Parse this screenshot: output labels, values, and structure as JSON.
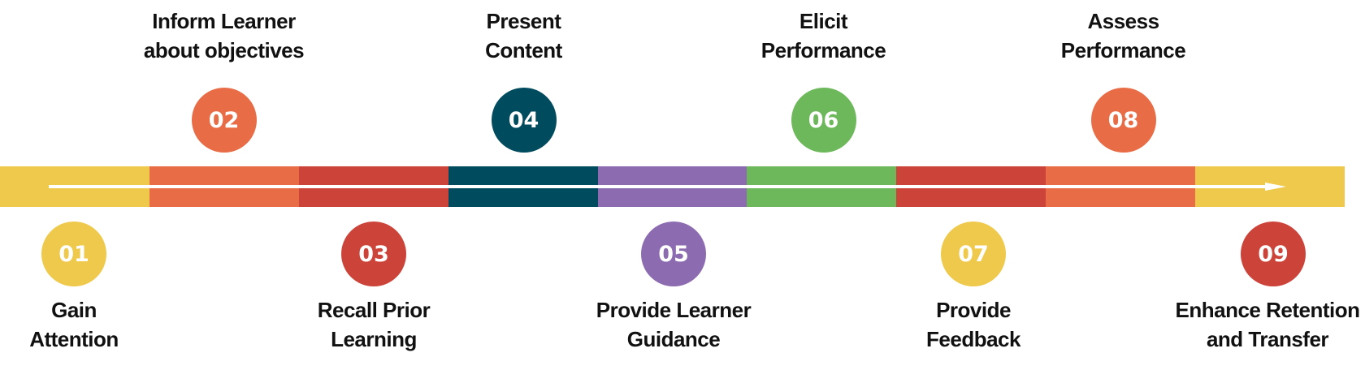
{
  "colors": {
    "yellow": "#EFC94C",
    "orange": "#E86D47",
    "red": "#CC433A",
    "teal": "#004B5E",
    "purple": "#8C6BB1",
    "green": "#6DB85A",
    "arrow": "#FFFFFF"
  },
  "band": [
    "yellow",
    "orange",
    "red",
    "teal",
    "purple",
    "green",
    "red",
    "orange",
    "yellow"
  ],
  "steps": [
    {
      "num": "01",
      "line1": "Gain",
      "line2": "Attention",
      "color": "yellow",
      "pos": "bottom"
    },
    {
      "num": "02",
      "line1": "Inform Learner",
      "line2": "about objectives",
      "color": "orange",
      "pos": "top"
    },
    {
      "num": "03",
      "line1": "Recall Prior",
      "line2": "Learning",
      "color": "red",
      "pos": "bottom"
    },
    {
      "num": "04",
      "line1": "Present",
      "line2": "Content",
      "color": "teal",
      "pos": "top"
    },
    {
      "num": "05",
      "line1": "Provide Learner",
      "line2": "Guidance",
      "color": "purple",
      "pos": "bottom"
    },
    {
      "num": "06",
      "line1": "Elicit",
      "line2": "Performance",
      "color": "green",
      "pos": "top"
    },
    {
      "num": "07",
      "line1": "Provide",
      "line2": "Feedback",
      "color": "yellow",
      "pos": "bottom"
    },
    {
      "num": "08",
      "line1": "Assess",
      "line2": "Performance",
      "color": "orange",
      "pos": "top"
    },
    {
      "num": "09",
      "line1": "Enhance Retention",
      "line2": "and Transfer",
      "color": "red",
      "pos": "bottom"
    }
  ]
}
